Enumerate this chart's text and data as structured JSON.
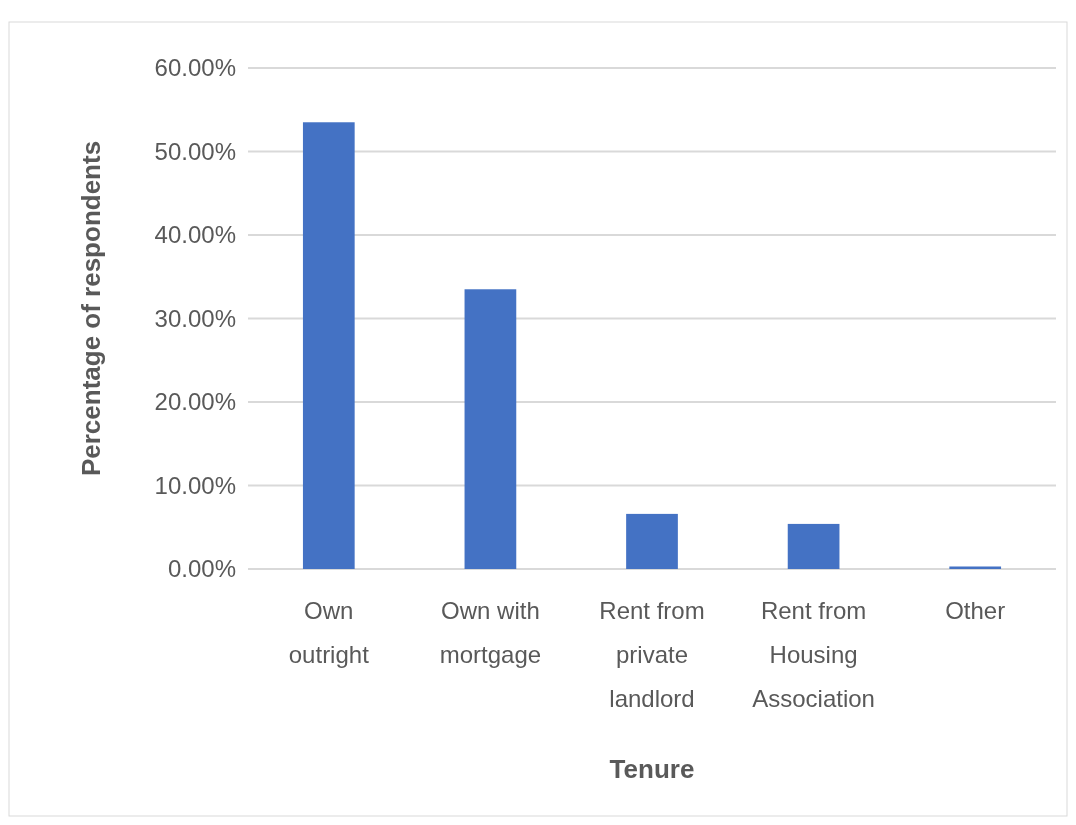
{
  "chart_data": {
    "type": "bar",
    "xlabel": "Tenure",
    "ylabel": "Percentage of respondents",
    "categories": [
      "Own outright",
      "Own with mortgage",
      "Rent from private landlord",
      "Rent from Housing Association",
      "Other"
    ],
    "values": [
      53.5,
      33.5,
      6.6,
      5.4,
      0.3
    ],
    "color": "#4472c4",
    "ylim": [
      0,
      60
    ],
    "yticks": [
      {
        "value": 0,
        "label": "0.00%"
      },
      {
        "value": 10,
        "label": "10.00%"
      },
      {
        "value": 20,
        "label": "20.00%"
      },
      {
        "value": 30,
        "label": "30.00%"
      },
      {
        "value": 40,
        "label": "40.00%"
      },
      {
        "value": 50,
        "label": "50.00%"
      },
      {
        "value": 60,
        "label": "60.00%"
      }
    ],
    "grid": true
  }
}
